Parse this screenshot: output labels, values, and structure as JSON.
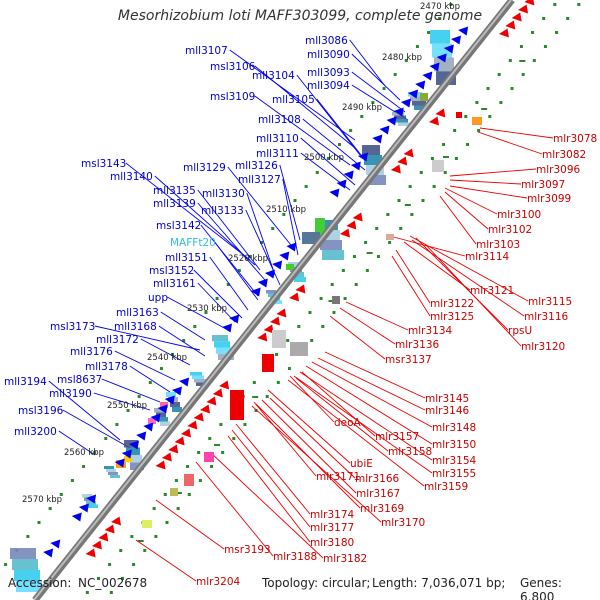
{
  "title": "Mesorhizobium loti MAFF303099, complete genome",
  "footer": {
    "accession_label": "Accession:",
    "accession": "NC_002678",
    "topology": "Topology: circular;",
    "length": "Length: 7,036,071 bp;",
    "genes": "Genes: 6,800"
  },
  "colors": {
    "forward_label": "#0000cc",
    "reverse_label": "#cc0000",
    "rna_label": "#33bbdd",
    "backbone": "#555555",
    "tick": "#2a8a2a",
    "forward_gene": "#0000ee",
    "reverse_gene": "#ee0000"
  },
  "scale_ticks": [
    "2470 kbp",
    "2480 kbp",
    "2490 kbp",
    "2500 kbp",
    "2510 kbp",
    "2520 kbp",
    "2530 kbp",
    "2540 kbp",
    "2550 kbp",
    "2560 kbp",
    "2570 kbp"
  ],
  "forward_labels": [
    "mll3086",
    "mll3090",
    "mll3093",
    "mll3094",
    "mll3107",
    "msl3106",
    "mll3104",
    "mll3105",
    "msl3109",
    "mll3108",
    "mll3110",
    "mll3111",
    "mll3126",
    "mll3129",
    "mll3127",
    "msl3143",
    "mll3140",
    "mll3135",
    "mll3130",
    "mll3139",
    "mll3133",
    "msl3142",
    "MAFFt20",
    "mll3151",
    "msl3152",
    "mll3161",
    "upp",
    "mll3163",
    "msl3173",
    "mll3168",
    "mll3172",
    "mll3176",
    "mll3178",
    "msl8637",
    "mll3194",
    "mll3190",
    "msl3196",
    "mll3200"
  ],
  "reverse_labels": [
    "mlr3078",
    "mlr3082",
    "mlr3096",
    "mlr3097",
    "mlr3099",
    "mlr3100",
    "mlr3102",
    "mlr3103",
    "mlr3114",
    "mlr3121",
    "mlr3115",
    "mlr3122",
    "mlr3116",
    "mlr3125",
    "rpsU",
    "mlr3134",
    "mlr3120",
    "mlr3136",
    "msr3137",
    "mlr3145",
    "mlr3146",
    "mlr3148",
    "deoA",
    "mlr3157",
    "mlr3150",
    "mlr3158",
    "mlr3154",
    "mlr3155",
    "ubiE",
    "mlr3159",
    "mlr3171",
    "mlr3166",
    "mlr3167",
    "mlr3169",
    "mlr3170",
    "mlr3174",
    "mlr3177",
    "mlr3180",
    "msr3193",
    "mlr3188",
    "mlr3182",
    "mlr3204"
  ]
}
